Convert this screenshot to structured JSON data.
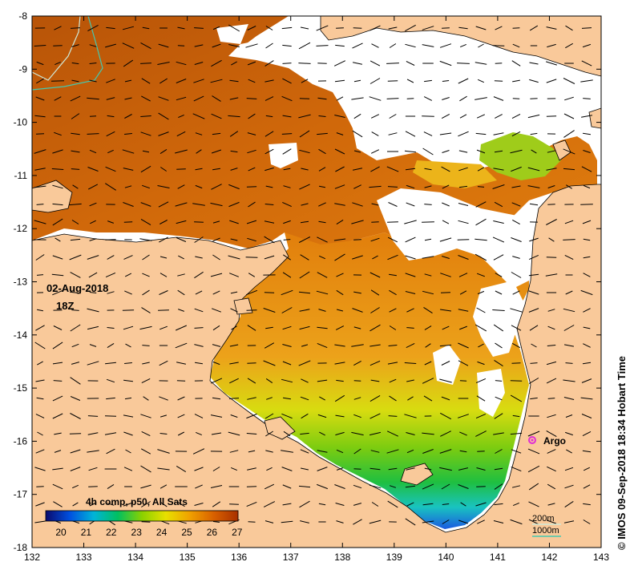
{
  "map": {
    "date_line1": "02-Aug-2018",
    "date_line2": "18Z",
    "x_ticks": [
      "132",
      "133",
      "134",
      "135",
      "136",
      "137",
      "138",
      "139",
      "140",
      "141",
      "142",
      "143"
    ],
    "y_ticks": [
      "-8",
      "-9",
      "-10",
      "-11",
      "-12",
      "-13",
      "-14",
      "-15",
      "-16",
      "-17",
      "-18"
    ],
    "argo_label": "Argo",
    "isobath_200": "200m",
    "isobath_1000": "1000m",
    "credit": "© IMOS 09-Sep-2018 18:34 Hobart Time",
    "colors": {
      "land": "#f9c99a",
      "argo": "#e02cd6",
      "isobath_200": "#cfe9d8",
      "isobath_1000": "#44c8b0"
    }
  },
  "colorbar": {
    "title": "4h comp, p50, All Sats",
    "ticks": [
      "20",
      "21",
      "22",
      "23",
      "24",
      "25",
      "26",
      "27"
    ],
    "colors": [
      "#0a0a6e",
      "#0050e0",
      "#00b4d8",
      "#00c060",
      "#8ad000",
      "#e8e000",
      "#f0a000",
      "#d86000",
      "#a83000"
    ]
  }
}
